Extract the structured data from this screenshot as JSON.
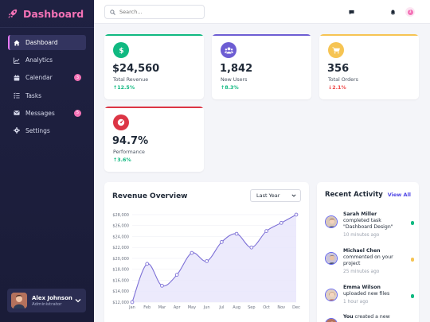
{
  "brand": {
    "title": "Dashboard",
    "accent": "#f472b6"
  },
  "sidebar": {
    "items": [
      {
        "label": "Dashboard",
        "icon": "home-icon",
        "active": true
      },
      {
        "label": "Analytics",
        "icon": "chart-line-icon"
      },
      {
        "label": "Calendar",
        "icon": "calendar-icon",
        "badge": "3"
      },
      {
        "label": "Tasks",
        "icon": "tasks-icon"
      },
      {
        "label": "Messages",
        "icon": "envelope-icon",
        "badge": "5"
      },
      {
        "label": "Settings",
        "icon": "gear-icon"
      }
    ],
    "user": {
      "name": "Alex Johnson",
      "role": "Administrator"
    }
  },
  "topbar": {
    "search_placeholder": "Search...",
    "notification_badge": "3"
  },
  "stats": [
    {
      "value": "$24,560",
      "label": "Total Revenue",
      "change": "12.5%",
      "direction": "up",
      "color": "#10b981",
      "icon": "dollar-icon"
    },
    {
      "value": "1,842",
      "label": "New Users",
      "change": "8.3%",
      "direction": "up",
      "color": "#6d5dd3",
      "icon": "users-icon"
    },
    {
      "value": "356",
      "label": "Total Orders",
      "change": "2.1%",
      "direction": "down",
      "color": "#f6c453",
      "icon": "cart-icon"
    },
    {
      "value": "94.7%",
      "label": "Performance",
      "change": "3.6%",
      "direction": "up",
      "color": "#dc3545",
      "icon": "gauge-icon"
    }
  ],
  "revenue": {
    "title": "Revenue Overview",
    "period": "Last Year"
  },
  "chart_data": {
    "type": "area",
    "title": "Revenue Overview",
    "categories": [
      "Jan",
      "Feb",
      "Mar",
      "Apr",
      "May",
      "Jun",
      "Jul",
      "Aug",
      "Sep",
      "Oct",
      "Nov",
      "Dec"
    ],
    "y_tick_labels": [
      "$12,000",
      "$14,000",
      "$16,000",
      "$18,000",
      "$20,000",
      "$22,000",
      "$24,000",
      "$26,000",
      "$28,000"
    ],
    "series": [
      {
        "values": [
          12000,
          19000,
          15000,
          17000,
          21000,
          19500,
          23000,
          24500,
          22000,
          25000,
          26500,
          28000
        ]
      }
    ],
    "ylim": [
      12000,
      28000
    ],
    "grid": true,
    "color": "#7c6fd6"
  },
  "activity": {
    "title": "Recent Activity",
    "view_all": "View All",
    "items": [
      {
        "name": "Sarah Miller",
        "line1": "completed task",
        "line2": "\"Dashboard Design\"",
        "time": "10 minutes ago",
        "dot": "#10b981"
      },
      {
        "name": "Michael Chen",
        "line1": "commented on your",
        "line2": "project",
        "time": "25 minutes ago",
        "dot": "#f6c453"
      },
      {
        "name": "Emma Wilson",
        "line1": "uploaded new files",
        "line2": "",
        "time": "1 hour ago",
        "dot": "#10b981"
      },
      {
        "name": "You",
        "line1": "created a new",
        "line2": "",
        "time": "",
        "dot": "#10b981"
      }
    ]
  }
}
